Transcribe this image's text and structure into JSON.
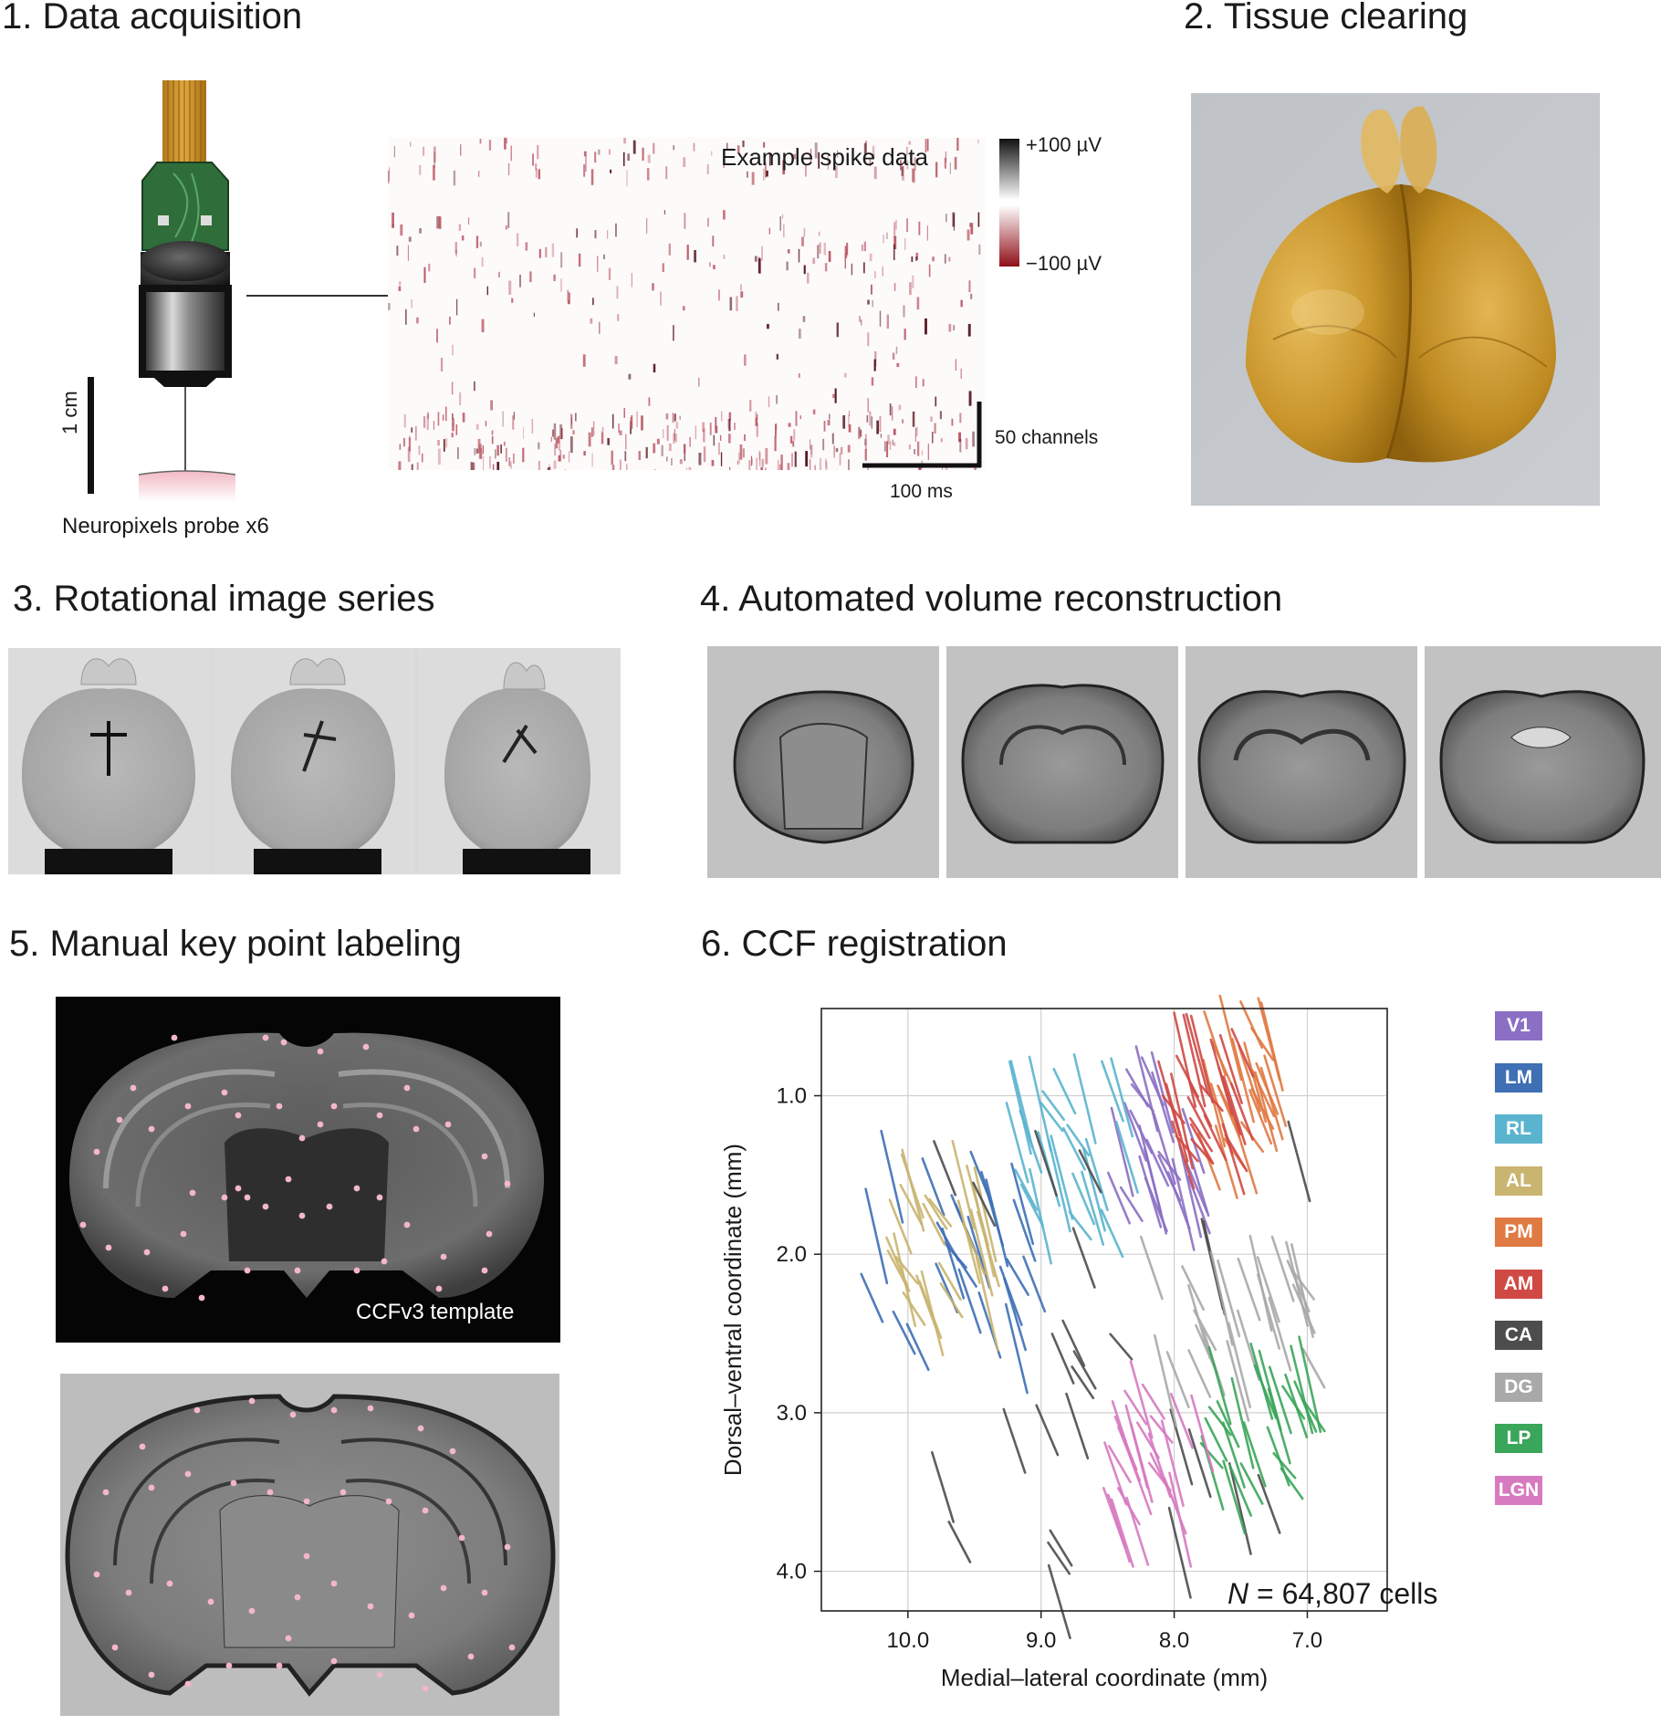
{
  "panels": {
    "p1": {
      "title": "1. Data acquisition",
      "probe_label": "Neuropixels probe x6",
      "probe_scale": "1 cm",
      "spike_title": "Example spike data",
      "cbar_top": "+100 µV",
      "cbar_bottom": "−100 µV",
      "scale_channels": "50 channels",
      "scale_time": "100 ms"
    },
    "p2": {
      "title": "2. Tissue clearing"
    },
    "p3": {
      "title": "3. Rotational image series"
    },
    "p4": {
      "title": "4. Automated volume reconstruction"
    },
    "p5": {
      "title": "5. Manual key point labeling",
      "template_label": "CCFv3 template"
    },
    "p6": {
      "title": "6. CCF registration",
      "cells_italic": "N",
      "cells_text": " = 64,807 cells"
    }
  },
  "colors": {
    "V1": "#8b6fc4",
    "LM": "#3f6fb5",
    "RL": "#5ab4cf",
    "AL": "#c9b470",
    "PM": "#e07a43",
    "AM": "#d04a45",
    "CA": "#4d4d4d",
    "DG": "#a9a9a9",
    "LP": "#3aa65a",
    "LGN": "#d77ac0"
  },
  "chart_data": {
    "type": "scatter",
    "title": "",
    "xlabel": "Medial–lateral coordinate (mm)",
    "ylabel": "Dorsal–ventral coordinate (mm)",
    "xlim": [
      10.65,
      6.4
    ],
    "ylim": [
      0.45,
      4.25
    ],
    "x_reversed": true,
    "y_reversed": true,
    "x_ticks": [
      10.0,
      9.0,
      8.0,
      7.0
    ],
    "x_tick_labels": [
      "10.0",
      "9.0",
      "8.0",
      "7.0"
    ],
    "y_ticks": [
      1.0,
      2.0,
      3.0,
      4.0
    ],
    "y_tick_labels": [
      "1.0",
      "2.0",
      "3.0",
      "4.0"
    ],
    "grid": true,
    "legend_position": "right",
    "legend": [
      "V1",
      "LM",
      "RL",
      "AL",
      "PM",
      "AM",
      "CA",
      "DG",
      "LP",
      "LGN"
    ],
    "series": [
      {
        "name": "V1",
        "x_range": [
          8.45,
          7.75
        ],
        "y_range": [
          0.9,
          1.7
        ]
      },
      {
        "name": "LM",
        "x_range": [
          10.3,
          9.05
        ],
        "y_range": [
          1.5,
          2.6
        ]
      },
      {
        "name": "RL",
        "x_range": [
          9.25,
          8.3
        ],
        "y_range": [
          0.95,
          1.9
        ]
      },
      {
        "name": "AL",
        "x_range": [
          10.1,
          9.35
        ],
        "y_range": [
          1.5,
          2.4
        ]
      },
      {
        "name": "PM",
        "x_range": [
          7.75,
          7.1
        ],
        "y_range": [
          0.55,
          1.45
        ]
      },
      {
        "name": "AM",
        "x_range": [
          8.05,
          7.45
        ],
        "y_range": [
          0.65,
          1.4
        ]
      },
      {
        "name": "CA",
        "x_range": [
          9.75,
          7.0
        ],
        "y_range": [
          1.4,
          4.2
        ]
      },
      {
        "name": "DG",
        "x_range": [
          8.2,
          6.95
        ],
        "y_range": [
          2.0,
          2.8
        ]
      },
      {
        "name": "LP",
        "x_range": [
          7.75,
          6.95
        ],
        "y_range": [
          2.8,
          3.55
        ]
      },
      {
        "name": "LGN",
        "x_range": [
          8.45,
          7.75
        ],
        "y_range": [
          2.9,
          3.8
        ]
      }
    ],
    "total_cells": 64807
  }
}
